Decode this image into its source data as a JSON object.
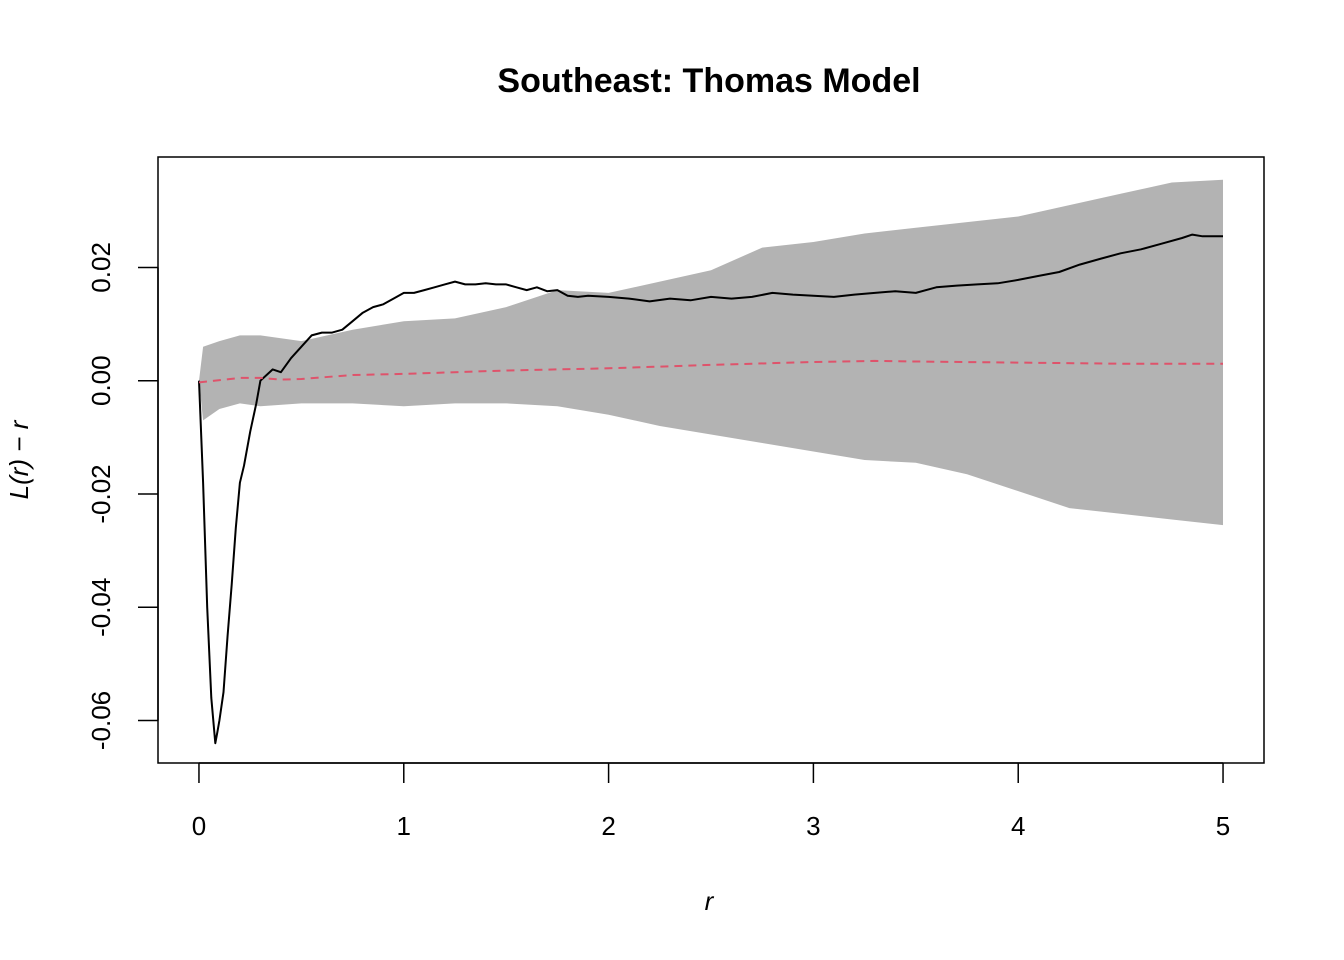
{
  "chart_data": {
    "type": "line",
    "title": "Southeast: Thomas Model",
    "xlabel": "r",
    "ylabel": "L(r) − r",
    "xlim": [
      -0.2,
      5.2
    ],
    "ylim": [
      -0.0675,
      0.0395
    ],
    "x_ticks": [
      0,
      1,
      2,
      3,
      4,
      5
    ],
    "x_tick_labels": [
      "0",
      "1",
      "2",
      "3",
      "4",
      "5"
    ],
    "y_ticks": [
      -0.06,
      -0.04,
      -0.02,
      0.0,
      0.02
    ],
    "y_tick_labels": [
      "-0.06",
      "-0.04",
      "-0.02",
      "0.00",
      "0.02"
    ],
    "grid": false,
    "colors": {
      "envelope": "#b3b3b3",
      "observed": "#000000",
      "theoretical": "#df536b",
      "frame": "#000000"
    },
    "envelope": {
      "x": [
        0.0,
        0.02,
        0.1,
        0.2,
        0.3,
        0.5,
        0.75,
        1.0,
        1.25,
        1.5,
        1.75,
        2.0,
        2.25,
        2.5,
        2.75,
        3.0,
        3.25,
        3.5,
        3.75,
        4.0,
        4.25,
        4.5,
        4.75,
        5.0
      ],
      "upper": [
        0.0,
        0.006,
        0.007,
        0.008,
        0.008,
        0.007,
        0.009,
        0.0105,
        0.011,
        0.013,
        0.016,
        0.0155,
        0.0175,
        0.0195,
        0.0235,
        0.0245,
        0.026,
        0.027,
        0.028,
        0.029,
        0.031,
        0.033,
        0.035,
        0.0355
      ],
      "lower": [
        0.0,
        -0.007,
        -0.005,
        -0.004,
        -0.0045,
        -0.004,
        -0.004,
        -0.0045,
        -0.004,
        -0.004,
        -0.0045,
        -0.006,
        -0.008,
        -0.0095,
        -0.011,
        -0.0125,
        -0.014,
        -0.0145,
        -0.0165,
        -0.0195,
        -0.0225,
        -0.0235,
        -0.0245,
        -0.0255
      ]
    },
    "series": [
      {
        "role": "observed",
        "style": "solid",
        "x": [
          0.0,
          0.02,
          0.04,
          0.06,
          0.08,
          0.09,
          0.1,
          0.12,
          0.14,
          0.16,
          0.18,
          0.2,
          0.22,
          0.25,
          0.28,
          0.3,
          0.33,
          0.36,
          0.4,
          0.45,
          0.5,
          0.55,
          0.6,
          0.65,
          0.7,
          0.75,
          0.8,
          0.85,
          0.9,
          0.95,
          1.0,
          1.05,
          1.1,
          1.15,
          1.2,
          1.25,
          1.3,
          1.35,
          1.4,
          1.45,
          1.5,
          1.55,
          1.6,
          1.65,
          1.7,
          1.75,
          1.8,
          1.85,
          1.9,
          2.0,
          2.1,
          2.2,
          2.3,
          2.4,
          2.5,
          2.6,
          2.7,
          2.8,
          2.9,
          3.0,
          3.1,
          3.2,
          3.3,
          3.4,
          3.5,
          3.6,
          3.7,
          3.8,
          3.9,
          4.0,
          4.1,
          4.2,
          4.3,
          4.4,
          4.5,
          4.6,
          4.7,
          4.8,
          4.85,
          4.9,
          5.0
        ],
        "y": [
          0.0,
          -0.018,
          -0.04,
          -0.056,
          -0.064,
          -0.062,
          -0.06,
          -0.055,
          -0.045,
          -0.036,
          -0.026,
          -0.018,
          -0.015,
          -0.009,
          -0.004,
          0.0,
          0.001,
          0.002,
          0.0015,
          0.004,
          0.006,
          0.008,
          0.0085,
          0.0085,
          0.009,
          0.0105,
          0.012,
          0.013,
          0.0135,
          0.0145,
          0.0155,
          0.0155,
          0.016,
          0.0165,
          0.017,
          0.0175,
          0.017,
          0.017,
          0.0172,
          0.017,
          0.017,
          0.0165,
          0.016,
          0.0165,
          0.0158,
          0.016,
          0.015,
          0.0148,
          0.015,
          0.0148,
          0.0145,
          0.014,
          0.0145,
          0.0142,
          0.0148,
          0.0145,
          0.0148,
          0.0155,
          0.0152,
          0.015,
          0.0148,
          0.0152,
          0.0155,
          0.0158,
          0.0155,
          0.0165,
          0.0168,
          0.017,
          0.0172,
          0.0178,
          0.0185,
          0.0192,
          0.0205,
          0.0215,
          0.0225,
          0.0232,
          0.0242,
          0.0252,
          0.0258,
          0.0255,
          0.0255
        ]
      },
      {
        "role": "theoretical",
        "style": "dashed",
        "x": [
          0.0,
          0.2,
          0.3,
          0.4,
          0.5,
          0.75,
          1.0,
          1.5,
          2.0,
          2.5,
          3.0,
          3.3,
          3.5,
          4.0,
          4.5,
          5.0
        ],
        "y": [
          -0.0003,
          0.0005,
          0.0005,
          0.0002,
          0.0003,
          0.001,
          0.0012,
          0.0018,
          0.0022,
          0.0028,
          0.0033,
          0.0035,
          0.0034,
          0.0032,
          0.003,
          0.003
        ]
      }
    ]
  }
}
